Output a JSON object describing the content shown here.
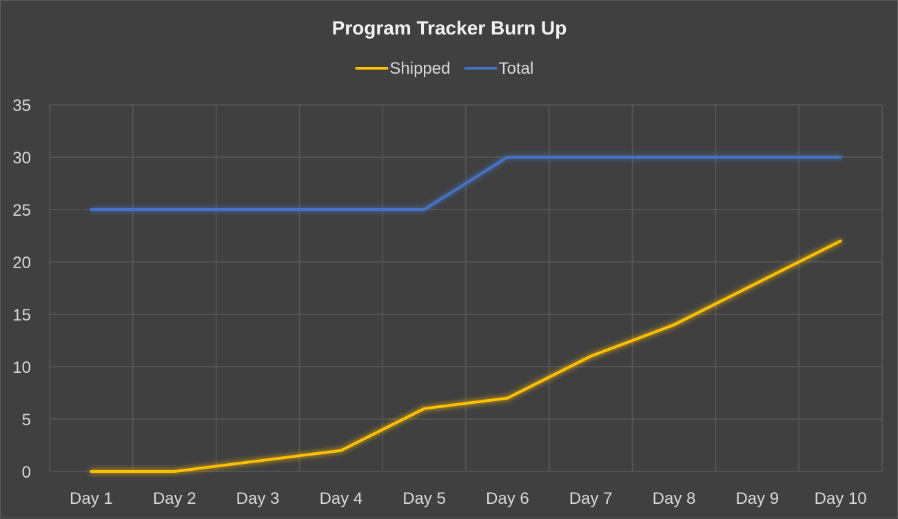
{
  "chart_data": {
    "type": "line",
    "title": "Program Tracker Burn Up",
    "categories": [
      "Day 1",
      "Day 2",
      "Day 3",
      "Day 4",
      "Day 5",
      "Day 6",
      "Day 7",
      "Day 8",
      "Day 9",
      "Day 10"
    ],
    "series": [
      {
        "name": "Shipped",
        "color": "#ffc000",
        "values": [
          0,
          0,
          1,
          2,
          6,
          7,
          11,
          14,
          18,
          22
        ]
      },
      {
        "name": "Total",
        "color": "#4472c4",
        "values": [
          25,
          25,
          25,
          25,
          25,
          30,
          30,
          30,
          30,
          30
        ]
      }
    ],
    "ylim": [
      0,
      35
    ],
    "yticks": [
      0,
      5,
      10,
      15,
      20,
      25,
      30,
      35
    ],
    "xlabel": "",
    "ylabel": "",
    "grid": true,
    "legend_position": "top",
    "background_color": "#404040",
    "grid_color": "#595959"
  }
}
